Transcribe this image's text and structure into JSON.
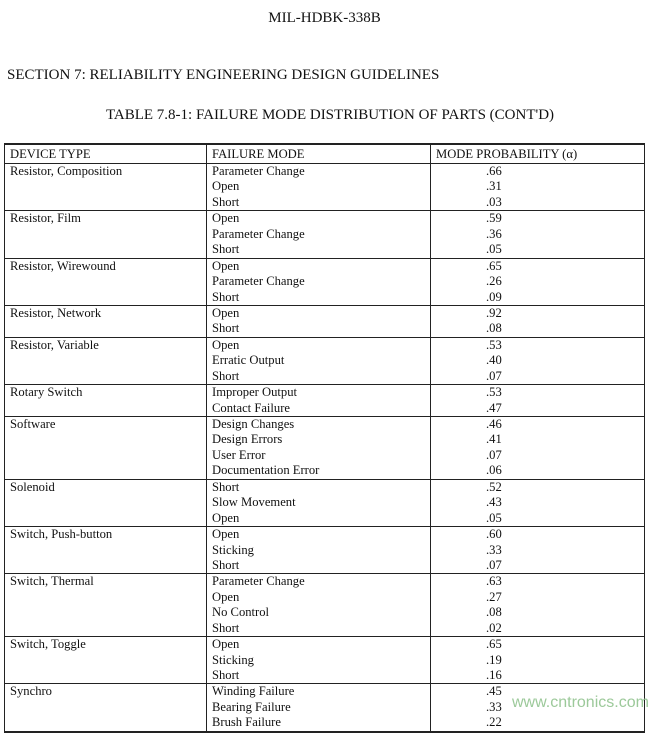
{
  "header": {
    "doc_id": "MIL-HDBK-338B",
    "section": "SECTION 7:  RELIABILITY ENGINEERING DESIGN GUIDELINES",
    "table_title": "TABLE 7.8-1:  FAILURE MODE DISTRIBUTION OF PARTS (CONT'D)"
  },
  "table": {
    "columns": [
      "DEVICE TYPE",
      "FAILURE MODE",
      "MODE PROBABILITY (α)"
    ],
    "rows": [
      {
        "device": "Resistor, Composition",
        "modes": [
          "Parameter Change",
          "Open",
          "Short"
        ],
        "probs": [
          ".66",
          ".31",
          ".03"
        ]
      },
      {
        "device": "Resistor, Film",
        "modes": [
          "Open",
          "Parameter Change",
          "Short"
        ],
        "probs": [
          ".59",
          ".36",
          ".05"
        ]
      },
      {
        "device": "Resistor, Wirewound",
        "modes": [
          "Open",
          "Parameter Change",
          "Short"
        ],
        "probs": [
          ".65",
          ".26",
          ".09"
        ]
      },
      {
        "device": "Resistor, Network",
        "modes": [
          "Open",
          "Short"
        ],
        "probs": [
          ".92",
          ".08"
        ]
      },
      {
        "device": "Resistor, Variable",
        "modes": [
          "Open",
          "Erratic Output",
          "Short"
        ],
        "probs": [
          ".53",
          ".40",
          ".07"
        ]
      },
      {
        "device": "Rotary Switch",
        "modes": [
          "Improper Output",
          "Contact Failure"
        ],
        "probs": [
          ".53",
          ".47"
        ]
      },
      {
        "device": "Software",
        "modes": [
          "Design Changes",
          "Design Errors",
          "User Error",
          "Documentation Error"
        ],
        "probs": [
          ".46",
          ".41",
          ".07",
          ".06"
        ]
      },
      {
        "device": "Solenoid",
        "modes": [
          "Short",
          "Slow Movement",
          "Open"
        ],
        "probs": [
          ".52",
          ".43",
          ".05"
        ]
      },
      {
        "device": "Switch, Push-button",
        "modes": [
          "Open",
          "Sticking",
          "Short"
        ],
        "probs": [
          ".60",
          ".33",
          ".07"
        ]
      },
      {
        "device": "Switch, Thermal",
        "modes": [
          "Parameter Change",
          "Open",
          "No Control",
          "Short"
        ],
        "probs": [
          ".63",
          ".27",
          ".08",
          ".02"
        ]
      },
      {
        "device": "Switch, Toggle",
        "modes": [
          "Open",
          "Sticking",
          "Short"
        ],
        "probs": [
          ".65",
          ".19",
          ".16"
        ]
      },
      {
        "device": "Synchro",
        "modes": [
          "Winding Failure",
          "Bearing Failure",
          "Brush Failure"
        ],
        "probs": [
          ".45",
          ".33",
          ".22"
        ]
      }
    ]
  },
  "watermark": "www.cntronics.com"
}
